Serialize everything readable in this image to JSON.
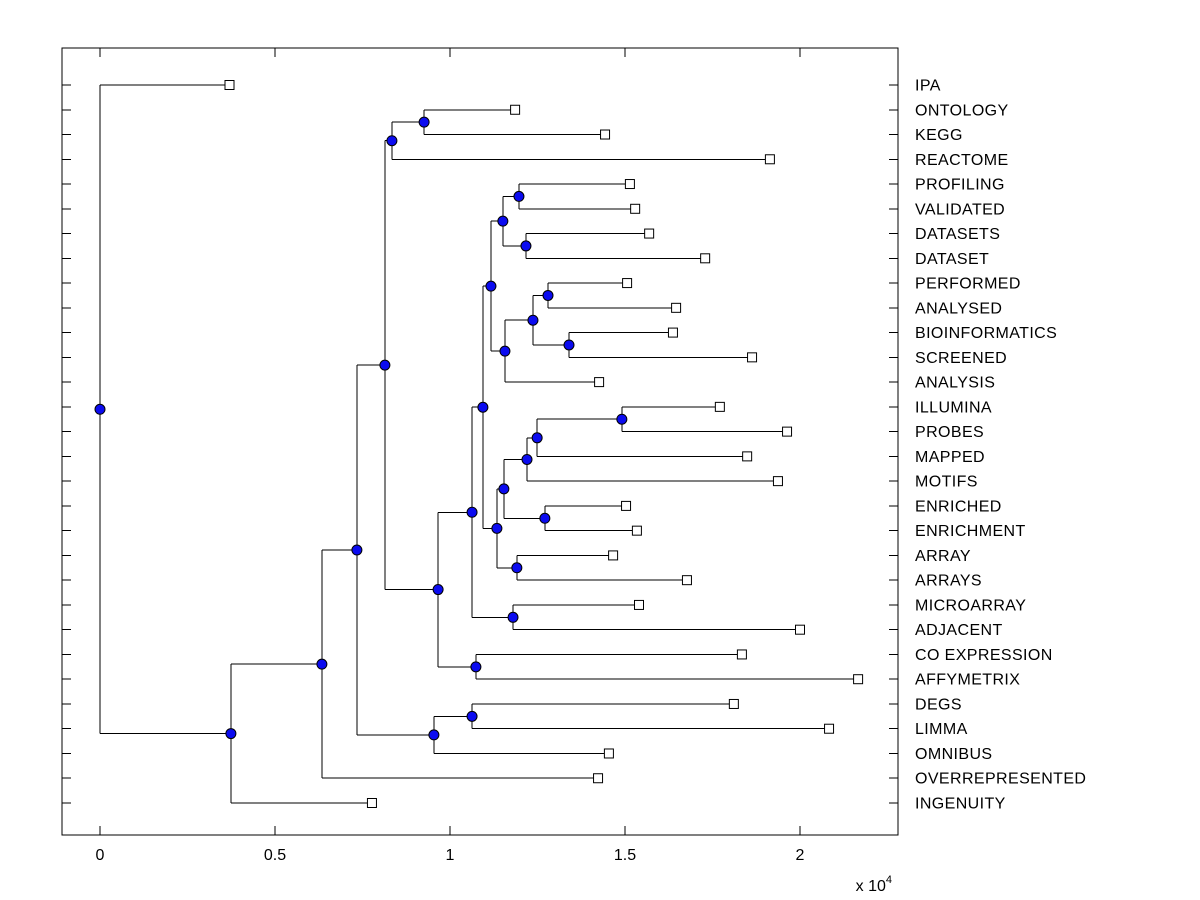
{
  "figure": {
    "background": "#ffffff",
    "type_label": "hierarchical-clustering-tree"
  },
  "chart_data": {
    "type": "dendrogram",
    "orientation": "left-to-right",
    "title": "",
    "xlabel": "",
    "ylabel": "",
    "grid": false,
    "x_axis": {
      "tick_values": [
        0,
        5000,
        10000,
        15000,
        20000
      ],
      "tick_labels": [
        "0",
        "0.5",
        "1",
        "1.5",
        "2"
      ],
      "multiplier": {
        "base": "x 10",
        "exponent": "4"
      },
      "approx_range": [
        -1100,
        22800
      ]
    },
    "style": {
      "line_color": "#000000",
      "node_fill": "#0b0bf0",
      "node_stroke": "#000000",
      "leaf_fill": "#ffffff",
      "leaf_stroke": "#000000",
      "node_radius": 5,
      "leaf_square_size": 9
    },
    "leaves": [
      {
        "label": "IPA",
        "value": 3700
      },
      {
        "label": "ONTOLOGY",
        "value": 11860
      },
      {
        "label": "KEGG",
        "value": 14430
      },
      {
        "label": "REACTOME",
        "value": 19140
      },
      {
        "label": "PROFILING",
        "value": 15140
      },
      {
        "label": "VALIDATED",
        "value": 15290
      },
      {
        "label": "DATASETS",
        "value": 15690
      },
      {
        "label": "DATASET",
        "value": 17290
      },
      {
        "label": "PERFORMED",
        "value": 15060
      },
      {
        "label": "ANALYSED",
        "value": 16460
      },
      {
        "label": "BIOINFORMATICS",
        "value": 16370
      },
      {
        "label": "SCREENED",
        "value": 18630
      },
      {
        "label": "ANALYSIS",
        "value": 14260
      },
      {
        "label": "ILLUMINA",
        "value": 17710
      },
      {
        "label": "PROBES",
        "value": 19630
      },
      {
        "label": "MAPPED",
        "value": 18490
      },
      {
        "label": "MOTIFS",
        "value": 19370
      },
      {
        "label": "ENRICHED",
        "value": 15030
      },
      {
        "label": "ENRICHMENT",
        "value": 15340
      },
      {
        "label": "ARRAY",
        "value": 14660
      },
      {
        "label": "ARRAYS",
        "value": 16770
      },
      {
        "label": "MICROARRAY",
        "value": 15400
      },
      {
        "label": "ADJACENT",
        "value": 20000
      },
      {
        "label": "CO EXPRESSION",
        "value": 18340
      },
      {
        "label": "AFFYMETRIX",
        "value": 21660
      },
      {
        "label": "DEGS",
        "value": 18110
      },
      {
        "label": "LIMMA",
        "value": 20830
      },
      {
        "label": "OMNIBUS",
        "value": 14540
      },
      {
        "label": "OVERREPRESENTED",
        "value": 14230
      },
      {
        "label": "INGENUITY",
        "value": 7770
      }
    ],
    "nodes": [
      {
        "id": "ONT_KEGG",
        "children": [
          "ONTOLOGY",
          "KEGG"
        ],
        "value": 9260
      },
      {
        "id": "ONT_KEGG_REACT",
        "children": [
          "ONT_KEGG",
          "REACTOME"
        ],
        "value": 8340
      },
      {
        "id": "PROF_VAL",
        "children": [
          "PROFILING",
          "VALIDATED"
        ],
        "value": 11970
      },
      {
        "id": "DSS_DS",
        "children": [
          "DATASETS",
          "DATASET"
        ],
        "value": 12170
      },
      {
        "id": "PROF_DS",
        "children": [
          "PROF_VAL",
          "DSS_DS"
        ],
        "value": 11510
      },
      {
        "id": "PERF_ANA",
        "children": [
          "PERFORMED",
          "ANALYSED"
        ],
        "value": 12800
      },
      {
        "id": "BIO_SCR",
        "children": [
          "BIOINFORMATICS",
          "SCREENED"
        ],
        "value": 13400
      },
      {
        "id": "PERF_SCR",
        "children": [
          "PERF_ANA",
          "BIO_SCR"
        ],
        "value": 12370
      },
      {
        "id": "PERF_ANLYS",
        "children": [
          "PERF_SCR",
          "ANALYSIS"
        ],
        "value": 11570
      },
      {
        "id": "PROF_ANLYS",
        "children": [
          "PROF_DS",
          "PERF_ANLYS"
        ],
        "value": 11170
      },
      {
        "id": "ILL_PROBES",
        "children": [
          "ILLUMINA",
          "PROBES"
        ],
        "value": 14910
      },
      {
        "id": "ILL_MAPPED",
        "children": [
          "ILL_PROBES",
          "MAPPED"
        ],
        "value": 12490
      },
      {
        "id": "ILL_MOTIFS",
        "children": [
          "ILL_MAPPED",
          "MOTIFS"
        ],
        "value": 12200
      },
      {
        "id": "ENR_ENRMT",
        "children": [
          "ENRICHED",
          "ENRICHMENT"
        ],
        "value": 12710
      },
      {
        "id": "ILL_ENR",
        "children": [
          "ILL_MOTIFS",
          "ENR_ENRMT"
        ],
        "value": 11540
      },
      {
        "id": "ARR_ARRS",
        "children": [
          "ARRAY",
          "ARRAYS"
        ],
        "value": 11910
      },
      {
        "id": "ILL_ARR",
        "children": [
          "ILL_ENR",
          "ARR_ARRS"
        ],
        "value": 11340
      },
      {
        "id": "PROF_ARR",
        "children": [
          "PROF_ANLYS",
          "ILL_ARR"
        ],
        "value": 10940
      },
      {
        "id": "MICRO_ADJ",
        "children": [
          "MICROARRAY",
          "ADJACENT"
        ],
        "value": 11800
      },
      {
        "id": "PROF_ADJ",
        "children": [
          "PROF_ARR",
          "MICRO_ADJ"
        ],
        "value": 10630
      },
      {
        "id": "CO_AFFY",
        "children": [
          "CO EXPRESSION",
          "AFFYMETRIX"
        ],
        "value": 10740
      },
      {
        "id": "PROF_AFFY",
        "children": [
          "PROF_ADJ",
          "CO_AFFY"
        ],
        "value": 9660
      },
      {
        "id": "ONT_AFFY",
        "children": [
          "ONT_KEGG_REACT",
          "PROF_AFFY"
        ],
        "value": 8140
      },
      {
        "id": "DEGS_LIMMA",
        "children": [
          "DEGS",
          "LIMMA"
        ],
        "value": 10630
      },
      {
        "id": "DEGS_OMNI",
        "children": [
          "DEGS_LIMMA",
          "OMNIBUS"
        ],
        "value": 9540
      },
      {
        "id": "ONT_OMNI",
        "children": [
          "ONT_AFFY",
          "DEGS_OMNI"
        ],
        "value": 7340
      },
      {
        "id": "ONT_OVER",
        "children": [
          "ONT_OMNI",
          "OVERREPRESENTED"
        ],
        "value": 6340
      },
      {
        "id": "ONT_ING",
        "children": [
          "ONT_OVER",
          "INGENUITY"
        ],
        "value": 3740
      },
      {
        "id": "ROOT",
        "children": [
          "IPA",
          "ONT_ING"
        ],
        "value": 0
      }
    ]
  }
}
